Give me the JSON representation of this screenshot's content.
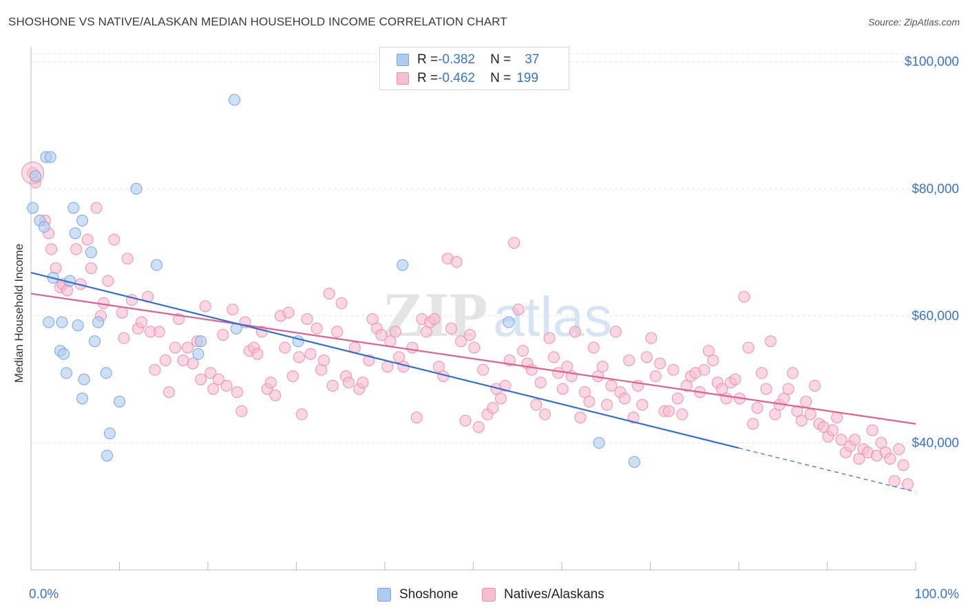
{
  "header": {
    "title": "SHOSHONE VS NATIVE/ALASKAN MEDIAN HOUSEHOLD INCOME CORRELATION CHART",
    "source": "Source: ZipAtlas.com"
  },
  "watermark": {
    "zip": "ZIP",
    "atlas": "atlas"
  },
  "legend_top": {
    "rows": [
      {
        "r_label": "R = ",
        "r_value": "-0.382",
        "n_label": "N = ",
        "n_value": "37"
      },
      {
        "r_label": "R = ",
        "r_value": "-0.462",
        "n_label": "N = ",
        "n_value": "199"
      }
    ]
  },
  "legend_bottom": {
    "items": [
      "Shoshone",
      "Natives/Alaskans"
    ]
  },
  "colors": {
    "shoshone_fill": "#aecbf0",
    "shoshone_stroke": "#7aa5dc",
    "shoshone_line": "#2e6fd1",
    "natives_fill": "#f7bdd0",
    "natives_stroke": "#ec8fae",
    "natives_line": "#e0608c",
    "tick_text": "#3a74c9",
    "grid": "#e2e2e2"
  },
  "chart_data": {
    "type": "scatter",
    "title": "SHOSHONE VS NATIVE/ALASKAN MEDIAN HOUSEHOLD INCOME CORRELATION CHART",
    "xlabel": "",
    "ylabel": "Median Household Income",
    "xlim": [
      0,
      100
    ],
    "ylim": [
      20000,
      103000
    ],
    "x_tick_labels": [
      "0.0%",
      "100.0%"
    ],
    "y_ticks": [
      40000,
      60000,
      80000,
      100000
    ],
    "y_tick_labels": [
      "$40,000",
      "$60,000",
      "$80,000",
      "$100,000"
    ],
    "grid": true,
    "legend_placement": "top-center",
    "series": [
      {
        "name": "Shoshone",
        "r": -0.382,
        "n": 37,
        "trend": {
          "x1": 0,
          "y1": 66800,
          "x2": 80,
          "y2": 39200,
          "dash_to_x": 100,
          "dash_to_y": 32300
        },
        "points": [
          [
            0.2,
            77000
          ],
          [
            0.5,
            82000
          ],
          [
            1.0,
            75000
          ],
          [
            1.5,
            74000
          ],
          [
            1.7,
            85000
          ],
          [
            2.2,
            85000
          ],
          [
            2.5,
            66000
          ],
          [
            2.0,
            59000
          ],
          [
            3.5,
            59000
          ],
          [
            3.3,
            54500
          ],
          [
            3.7,
            54000
          ],
          [
            4.0,
            51000
          ],
          [
            4.4,
            65500
          ],
          [
            4.8,
            77000
          ],
          [
            5.0,
            73000
          ],
          [
            5.3,
            58500
          ],
          [
            5.8,
            75000
          ],
          [
            6.0,
            50000
          ],
          [
            5.8,
            47000
          ],
          [
            6.8,
            70000
          ],
          [
            7.2,
            56000
          ],
          [
            7.6,
            59000
          ],
          [
            8.5,
            51000
          ],
          [
            8.9,
            41500
          ],
          [
            8.6,
            38000
          ],
          [
            10.0,
            46500
          ],
          [
            11.9,
            80000
          ],
          [
            14.2,
            68000
          ],
          [
            18.9,
            54000
          ],
          [
            19.2,
            56000
          ],
          [
            23.0,
            94000
          ],
          [
            23.2,
            58000
          ],
          [
            30.2,
            56000
          ],
          [
            42.0,
            68000
          ],
          [
            54.0,
            59000
          ],
          [
            64.2,
            40000
          ],
          [
            68.2,
            37000
          ]
        ]
      },
      {
        "name": "Natives/Alaskans",
        "r": -0.462,
        "n": 199,
        "trend": {
          "x1": 0,
          "y1": 63500,
          "x2": 100,
          "y2": 43000
        },
        "points": [
          [
            0.2,
            82500
          ],
          [
            0.5,
            81000
          ],
          [
            1.6,
            75000
          ],
          [
            2.0,
            73000
          ],
          [
            2.3,
            70500
          ],
          [
            2.8,
            67500
          ],
          [
            3.3,
            64500
          ],
          [
            3.6,
            65000
          ],
          [
            4.1,
            64000
          ],
          [
            5.1,
            70500
          ],
          [
            5.6,
            65000
          ],
          [
            6.4,
            72000
          ],
          [
            6.8,
            67500
          ],
          [
            7.4,
            77000
          ],
          [
            7.9,
            60000
          ],
          [
            8.2,
            62000
          ],
          [
            8.7,
            65500
          ],
          [
            9.4,
            72000
          ],
          [
            10.3,
            60500
          ],
          [
            10.5,
            56500
          ],
          [
            10.9,
            69000
          ],
          [
            11.4,
            62500
          ],
          [
            12.1,
            58000
          ],
          [
            12.5,
            59000
          ],
          [
            13.2,
            63000
          ],
          [
            13.5,
            57500
          ],
          [
            14.0,
            51500
          ],
          [
            14.5,
            57500
          ],
          [
            15.2,
            53000
          ],
          [
            15.6,
            48000
          ],
          [
            16.3,
            55000
          ],
          [
            16.7,
            59500
          ],
          [
            17.2,
            53000
          ],
          [
            17.7,
            55000
          ],
          [
            18.3,
            52500
          ],
          [
            18.8,
            56000
          ],
          [
            19.2,
            50000
          ],
          [
            19.7,
            61500
          ],
          [
            20.3,
            51000
          ],
          [
            20.6,
            48500
          ],
          [
            21.2,
            50000
          ],
          [
            21.7,
            57000
          ],
          [
            22.1,
            49000
          ],
          [
            22.8,
            61000
          ],
          [
            23.3,
            48000
          ],
          [
            23.8,
            45000
          ],
          [
            24.2,
            59000
          ],
          [
            24.7,
            54500
          ],
          [
            25.2,
            55000
          ],
          [
            25.6,
            54000
          ],
          [
            26.1,
            57500
          ],
          [
            26.7,
            48500
          ],
          [
            27.1,
            49500
          ],
          [
            27.6,
            47500
          ],
          [
            28.2,
            60000
          ],
          [
            28.7,
            55000
          ],
          [
            29.1,
            60500
          ],
          [
            29.6,
            50500
          ],
          [
            30.3,
            53500
          ],
          [
            30.6,
            44500
          ],
          [
            31.2,
            59500
          ],
          [
            31.6,
            54000
          ],
          [
            32.3,
            58000
          ],
          [
            32.8,
            51500
          ],
          [
            33.1,
            53000
          ],
          [
            33.7,
            63500
          ],
          [
            34.1,
            49000
          ],
          [
            34.6,
            57500
          ],
          [
            35.1,
            62000
          ],
          [
            35.6,
            50500
          ],
          [
            35.9,
            49500
          ],
          [
            36.6,
            55000
          ],
          [
            37.1,
            48500
          ],
          [
            37.5,
            49500
          ],
          [
            38.2,
            53000
          ],
          [
            38.6,
            59500
          ],
          [
            39.1,
            58000
          ],
          [
            39.6,
            57000
          ],
          [
            40.3,
            52000
          ],
          [
            40.6,
            56000
          ],
          [
            41.2,
            57500
          ],
          [
            41.6,
            53500
          ],
          [
            42.1,
            52000
          ],
          [
            43.1,
            55000
          ],
          [
            43.6,
            44000
          ],
          [
            44.2,
            59500
          ],
          [
            44.7,
            57500
          ],
          [
            45.1,
            59000
          ],
          [
            45.6,
            59500
          ],
          [
            46.1,
            52000
          ],
          [
            46.6,
            50500
          ],
          [
            47.1,
            69000
          ],
          [
            47.5,
            58000
          ],
          [
            48.1,
            68500
          ],
          [
            48.6,
            56000
          ],
          [
            49.1,
            43500
          ],
          [
            49.6,
            57000
          ],
          [
            50.1,
            55000
          ],
          [
            50.6,
            42500
          ],
          [
            51.1,
            51500
          ],
          [
            51.6,
            44500
          ],
          [
            52.2,
            45500
          ],
          [
            52.6,
            48500
          ],
          [
            53.1,
            47000
          ],
          [
            53.6,
            49000
          ],
          [
            54.1,
            53000
          ],
          [
            54.6,
            71500
          ],
          [
            55.1,
            61000
          ],
          [
            55.6,
            54500
          ],
          [
            56.1,
            52500
          ],
          [
            56.6,
            51500
          ],
          [
            57.1,
            46000
          ],
          [
            57.6,
            49500
          ],
          [
            58.1,
            44500
          ],
          [
            58.6,
            56500
          ],
          [
            59.1,
            53500
          ],
          [
            59.6,
            51000
          ],
          [
            60.1,
            48500
          ],
          [
            60.6,
            52000
          ],
          [
            61.1,
            50500
          ],
          [
            61.5,
            57500
          ],
          [
            62.1,
            44000
          ],
          [
            62.6,
            48000
          ],
          [
            63.1,
            46500
          ],
          [
            63.6,
            55000
          ],
          [
            64.1,
            50500
          ],
          [
            64.6,
            52000
          ],
          [
            65.1,
            46000
          ],
          [
            65.6,
            49000
          ],
          [
            66.1,
            57500
          ],
          [
            66.6,
            48000
          ],
          [
            67.1,
            47000
          ],
          [
            67.6,
            53000
          ],
          [
            68.1,
            44000
          ],
          [
            68.6,
            49000
          ],
          [
            69.1,
            46000
          ],
          [
            69.6,
            53500
          ],
          [
            70.1,
            56500
          ],
          [
            70.6,
            50500
          ],
          [
            71.1,
            52500
          ],
          [
            71.6,
            45000
          ],
          [
            72.1,
            45000
          ],
          [
            72.6,
            51500
          ],
          [
            73.1,
            47000
          ],
          [
            73.6,
            44500
          ],
          [
            74.1,
            49000
          ],
          [
            74.6,
            50500
          ],
          [
            75.1,
            51000
          ],
          [
            75.6,
            48000
          ],
          [
            76.1,
            51500
          ],
          [
            76.6,
            54500
          ],
          [
            77.1,
            53000
          ],
          [
            77.6,
            49500
          ],
          [
            78.1,
            48500
          ],
          [
            78.6,
            47000
          ],
          [
            79.1,
            49500
          ],
          [
            79.6,
            50000
          ],
          [
            80.1,
            47000
          ],
          [
            80.6,
            63000
          ],
          [
            81.1,
            55000
          ],
          [
            81.6,
            43000
          ],
          [
            82.1,
            45500
          ],
          [
            82.6,
            51000
          ],
          [
            83.1,
            48500
          ],
          [
            83.6,
            56000
          ],
          [
            84.1,
            44500
          ],
          [
            84.6,
            46000
          ],
          [
            85.1,
            47000
          ],
          [
            85.6,
            48500
          ],
          [
            86.1,
            51000
          ],
          [
            86.6,
            45000
          ],
          [
            87.1,
            43500
          ],
          [
            87.6,
            46500
          ],
          [
            88.1,
            44500
          ],
          [
            88.6,
            49000
          ],
          [
            89.1,
            43000
          ],
          [
            89.6,
            42500
          ],
          [
            90.1,
            41000
          ],
          [
            90.6,
            42000
          ],
          [
            91.1,
            44000
          ],
          [
            91.6,
            40500
          ],
          [
            92.1,
            38500
          ],
          [
            92.6,
            39500
          ],
          [
            93.1,
            40500
          ],
          [
            93.6,
            37500
          ],
          [
            94.1,
            39000
          ],
          [
            94.6,
            38500
          ],
          [
            95.1,
            42000
          ],
          [
            95.6,
            38000
          ],
          [
            96.1,
            40000
          ],
          [
            96.6,
            38500
          ],
          [
            97.1,
            37500
          ],
          [
            97.6,
            34000
          ],
          [
            98.1,
            39000
          ],
          [
            98.6,
            36500
          ],
          [
            99.1,
            33500
          ]
        ]
      }
    ]
  }
}
